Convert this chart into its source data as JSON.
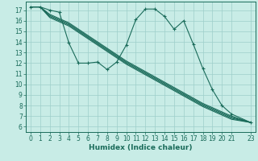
{
  "xlabel": "Humidex (Indice chaleur)",
  "bg_color": "#c8ece6",
  "grid_color": "#9ecfca",
  "line_color": "#1a6b5a",
  "xlim": [
    -0.5,
    23.5
  ],
  "ylim": [
    5.5,
    17.8
  ],
  "xticks": [
    0,
    1,
    2,
    3,
    4,
    5,
    6,
    7,
    8,
    9,
    10,
    11,
    12,
    13,
    14,
    15,
    16,
    17,
    18,
    19,
    20,
    21,
    23
  ],
  "yticks": [
    6,
    7,
    8,
    9,
    10,
    11,
    12,
    13,
    14,
    15,
    16,
    17
  ],
  "lines": [
    {
      "x": [
        0,
        1,
        2,
        3,
        4,
        5,
        6,
        7,
        8,
        9,
        10,
        11,
        12,
        13,
        14,
        15,
        16,
        17,
        18,
        19,
        20,
        21,
        23
      ],
      "y": [
        17.3,
        17.3,
        17.0,
        16.8,
        13.9,
        12.0,
        12.0,
        12.1,
        11.4,
        12.1,
        13.7,
        16.1,
        17.1,
        17.1,
        16.4,
        15.2,
        16.0,
        13.8,
        11.5,
        9.5,
        8.0,
        7.2,
        6.4
      ],
      "marker": true
    },
    {
      "x": [
        0,
        1,
        2,
        3,
        4,
        5,
        6,
        7,
        8,
        9,
        10,
        11,
        12,
        13,
        14,
        15,
        16,
        17,
        18,
        19,
        20,
        21,
        23
      ],
      "y": [
        17.3,
        17.3,
        16.6,
        16.2,
        15.8,
        15.2,
        14.6,
        14.0,
        13.4,
        12.8,
        12.2,
        11.7,
        11.2,
        10.7,
        10.2,
        9.7,
        9.2,
        8.7,
        8.2,
        7.8,
        7.4,
        7.0,
        6.4
      ],
      "marker": false
    },
    {
      "x": [
        0,
        1,
        2,
        3,
        4,
        5,
        6,
        7,
        8,
        9,
        10,
        11,
        12,
        13,
        14,
        15,
        16,
        17,
        18,
        19,
        20,
        21,
        23
      ],
      "y": [
        17.3,
        17.3,
        16.5,
        16.1,
        15.7,
        15.1,
        14.5,
        13.9,
        13.3,
        12.7,
        12.1,
        11.6,
        11.1,
        10.6,
        10.1,
        9.6,
        9.1,
        8.6,
        8.1,
        7.7,
        7.3,
        6.9,
        6.4
      ],
      "marker": false
    },
    {
      "x": [
        0,
        1,
        2,
        3,
        4,
        5,
        6,
        7,
        8,
        9,
        10,
        11,
        12,
        13,
        14,
        15,
        16,
        17,
        18,
        19,
        20,
        21,
        23
      ],
      "y": [
        17.3,
        17.3,
        16.4,
        16.0,
        15.6,
        15.0,
        14.4,
        13.8,
        13.2,
        12.6,
        12.0,
        11.5,
        11.0,
        10.5,
        10.0,
        9.5,
        9.0,
        8.5,
        8.0,
        7.6,
        7.2,
        6.8,
        6.4
      ],
      "marker": false
    },
    {
      "x": [
        0,
        1,
        2,
        3,
        4,
        5,
        6,
        7,
        8,
        9,
        10,
        11,
        12,
        13,
        14,
        15,
        16,
        17,
        18,
        19,
        20,
        21,
        23
      ],
      "y": [
        17.3,
        17.3,
        16.3,
        15.9,
        15.5,
        14.9,
        14.3,
        13.7,
        13.1,
        12.5,
        11.9,
        11.4,
        10.9,
        10.4,
        9.9,
        9.4,
        8.9,
        8.4,
        7.9,
        7.5,
        7.1,
        6.7,
        6.4
      ],
      "marker": false
    }
  ]
}
